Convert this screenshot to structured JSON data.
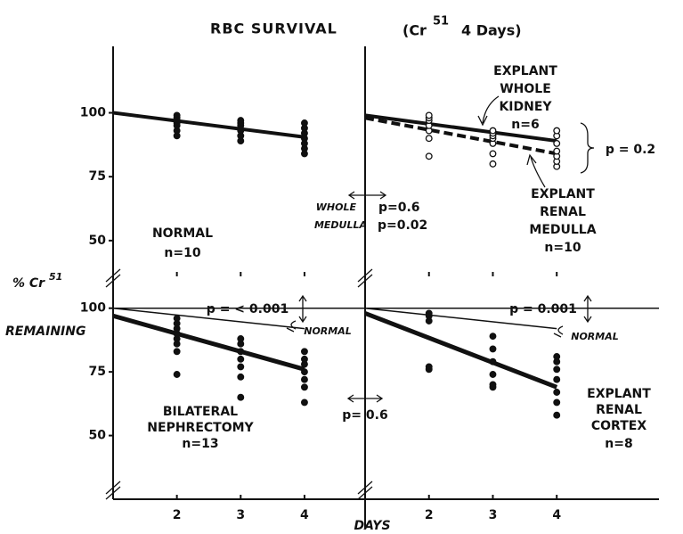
{
  "figure": {
    "title": [
      "RBC SURVIVAL",
      "(Cr",
      "51",
      "4 Days)"
    ],
    "ylabel": [
      "% Cr",
      "51",
      "REMAINING"
    ],
    "xlabel": "DAYS",
    "between": [
      "WHOLE",
      "p=0.6",
      "MEDULLA",
      "p=0.02",
      "p= 0.6"
    ]
  },
  "chart_data": [
    {
      "type": "scatter",
      "xlim": [
        1,
        4.95
      ],
      "ylim": [
        36,
        126
      ],
      "xticks": [
        2,
        3,
        4
      ],
      "yticks": [
        50,
        75,
        100
      ],
      "marker": "filled",
      "x": [
        2,
        2,
        2,
        2,
        2,
        2,
        2,
        3,
        3,
        3,
        3,
        3,
        3,
        4,
        4,
        4,
        4,
        4,
        4,
        4
      ],
      "values": [
        91,
        93,
        95,
        96,
        97,
        98,
        99,
        89,
        91,
        93,
        95,
        96,
        97,
        84,
        86,
        88,
        90,
        92,
        94,
        96
      ],
      "fits": [
        {
          "x": [
            1,
            4
          ],
          "values": [
            100,
            90.5
          ],
          "width": 4,
          "dash": false
        }
      ],
      "labels": [
        "NORMAL",
        "n=10"
      ]
    },
    {
      "type": "scatter",
      "xlim": [
        1,
        5.6
      ],
      "ylim": [
        36,
        126
      ],
      "xticks": [
        2,
        3,
        4
      ],
      "marker": "open",
      "x": [
        2,
        2,
        2,
        2,
        2,
        2,
        2,
        3,
        3,
        3,
        3,
        3,
        3,
        3,
        4,
        4,
        4,
        4,
        4,
        4,
        4
      ],
      "values": [
        83,
        90,
        93,
        95,
        97,
        98,
        99,
        80,
        84,
        88,
        90,
        91,
        92,
        93,
        79,
        81,
        83,
        85,
        88,
        91,
        93
      ],
      "fits": [
        {
          "x": [
            1,
            4
          ],
          "values": [
            99,
            89
          ],
          "width": 4,
          "dash": false
        },
        {
          "x": [
            1,
            4
          ],
          "values": [
            98,
            84
          ],
          "width": 4,
          "dash": true
        }
      ],
      "labels": [
        "EXPLANT",
        "WHOLE",
        "KIDNEY",
        "n=6",
        "p = 0.2",
        "EXPLANT",
        "RENAL",
        "MEDULLA",
        "n=10"
      ]
    },
    {
      "type": "scatter",
      "xlim": [
        1,
        4.95
      ],
      "ylim": [
        25,
        109
      ],
      "xticks": [
        2,
        3,
        4
      ],
      "yticks": [
        50,
        75,
        100
      ],
      "marker": "filled",
      "hline": 100,
      "x": [
        2,
        2,
        2,
        2,
        2,
        2,
        2,
        2,
        3,
        3,
        3,
        3,
        3,
        3,
        3,
        4,
        4,
        4,
        4,
        4,
        4,
        4
      ],
      "values": [
        74,
        83,
        86,
        88,
        90,
        92,
        94,
        96,
        65,
        73,
        77,
        80,
        83,
        86,
        88,
        63,
        69,
        72,
        75,
        78,
        80,
        83
      ],
      "fits": [
        {
          "x": [
            1,
            4
          ],
          "values": [
            100,
            92
          ],
          "width": 1.5,
          "dash": false
        },
        {
          "x": [
            1,
            4
          ],
          "values": [
            97,
            76
          ],
          "width": 5,
          "dash": false
        }
      ],
      "labels": [
        "p = < 0.001",
        "NORMAL",
        "BILATERAL",
        "NEPHRECTOMY",
        "n=13"
      ]
    },
    {
      "type": "scatter",
      "xlim": [
        1,
        5.6
      ],
      "ylim": [
        25,
        109
      ],
      "xticks": [
        2,
        3,
        4
      ],
      "marker": "filled",
      "hline": 100,
      "x": [
        2,
        2,
        2,
        2,
        2,
        3,
        3,
        3,
        3,
        3,
        3,
        4,
        4,
        4,
        4,
        4,
        4,
        4
      ],
      "values": [
        76,
        77,
        95,
        97,
        98,
        69,
        70,
        74,
        79,
        84,
        89,
        58,
        63,
        67,
        72,
        76,
        79,
        81
      ],
      "fits": [
        {
          "x": [
            1,
            4
          ],
          "values": [
            100,
            92
          ],
          "width": 1.5,
          "dash": false
        },
        {
          "x": [
            1,
            4
          ],
          "values": [
            98,
            69
          ],
          "width": 5,
          "dash": false
        }
      ],
      "labels": [
        "p = 0.001",
        "NORMAL",
        "EXPLANT",
        "RENAL",
        "CORTEX",
        "n=8"
      ]
    }
  ]
}
